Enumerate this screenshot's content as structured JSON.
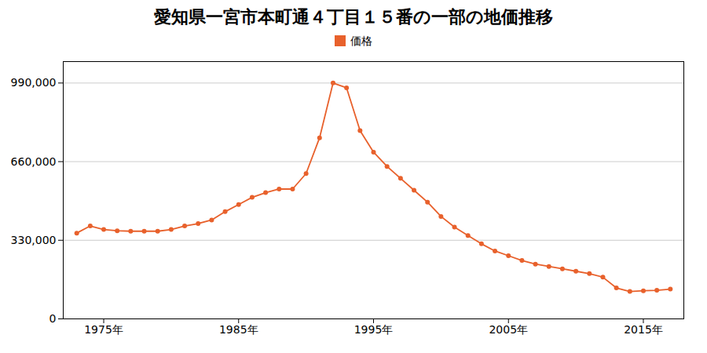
{
  "chart_data": {
    "type": "line",
    "title": "愛知県一宮市本町通４丁目１５番の一部の地価推移",
    "x": [
      1973,
      1974,
      1975,
      1976,
      1977,
      1978,
      1979,
      1980,
      1981,
      1982,
      1983,
      1984,
      1985,
      1986,
      1987,
      1988,
      1989,
      1990,
      1991,
      1992,
      1993,
      1994,
      1995,
      1996,
      1997,
      1998,
      1999,
      2000,
      2001,
      2002,
      2003,
      2004,
      2005,
      2006,
      2007,
      2008,
      2009,
      2010,
      2011,
      2012,
      2013,
      2014,
      2015,
      2016,
      2017
    ],
    "series": [
      {
        "name": "価格",
        "color": "#e8612c",
        "marker": "circle",
        "values": [
          360000,
          390000,
          375000,
          370000,
          368000,
          368000,
          368000,
          375000,
          390000,
          400000,
          415000,
          450000,
          480000,
          510000,
          530000,
          545000,
          545000,
          610000,
          760000,
          990000,
          970000,
          790000,
          700000,
          640000,
          590000,
          540000,
          490000,
          430000,
          385000,
          350000,
          315000,
          285000,
          265000,
          245000,
          230000,
          220000,
          210000,
          200000,
          190000,
          175000,
          130000,
          115000,
          118000,
          120000,
          125000
        ]
      }
    ],
    "xlim": [
      1972,
      2018
    ],
    "xticks": [
      {
        "value": 1975,
        "label": "1975年"
      },
      {
        "value": 1985,
        "label": "1985年"
      },
      {
        "value": 1995,
        "label": "1995年"
      },
      {
        "value": 2005,
        "label": "2005年"
      },
      {
        "value": 2015,
        "label": "2015年"
      }
    ],
    "ylim": [
      0,
      1080000
    ],
    "yticks": [
      0,
      {
        "value": 330000,
        "label": "330,000"
      },
      {
        "value": 660000,
        "label": "660,000"
      },
      {
        "value": 990000,
        "label": "990,000"
      }
    ],
    "grid": true,
    "legend": "top"
  }
}
